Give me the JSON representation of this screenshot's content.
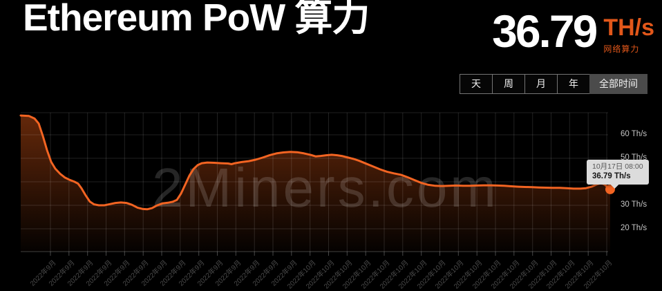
{
  "header": {
    "title": "Ethereum PoW 算力",
    "value": "36.79",
    "unit": "TH/s",
    "caption": "网络算力"
  },
  "colors": {
    "accent": "#e2571a",
    "line": "#f26422",
    "fill": "#ee5f18",
    "page_bg": "#000000",
    "tooltip_bg": "#dcdcdc",
    "selected_button_bg": "#4b4b4b"
  },
  "range_buttons": [
    {
      "label": "天",
      "selected": false
    },
    {
      "label": "周",
      "selected": false
    },
    {
      "label": "月",
      "selected": false
    },
    {
      "label": "年",
      "selected": false
    },
    {
      "label": "全部时间",
      "selected": true
    }
  ],
  "tooltip": {
    "date": "10月17日 08:00",
    "value": "36.79 Th/s"
  },
  "watermark": "2Miners.com",
  "chart_data": {
    "type": "area",
    "title": "Ethereum PoW 算力",
    "ylabel": "Th/s",
    "ylim": [
      10,
      70
    ],
    "grid": true,
    "legend": "none",
    "y_ticks": [
      {
        "value": 60,
        "label": "60 Th/s"
      },
      {
        "value": 50,
        "label": "50 Th/s"
      },
      {
        "value": 40,
        "label": "40 Th/s"
      },
      {
        "value": 30,
        "label": "30 Th/s"
      },
      {
        "value": 20,
        "label": "20 Th/s"
      }
    ],
    "y_grid_values": [
      70,
      60,
      50,
      40,
      30,
      20
    ],
    "x_labels": [
      "2022年9月",
      "2022年9月",
      "2022年9月",
      "2022年9月",
      "2022年9月",
      "2022年9月",
      "2022年9月",
      "2022年9月",
      "2022年9月",
      "2022年9月",
      "2022年9月",
      "2022年9月",
      "2022年9月",
      "2022年9月",
      "2022年10月",
      "2022年10月",
      "2022年10月",
      "2022年10月",
      "2022年10月",
      "2022年10月",
      "2022年10月",
      "2022年10月",
      "2022年10月",
      "2022年10月",
      "2022年10月",
      "2022年10月",
      "2022年10月",
      "2022年10月",
      "2022年10月",
      "2022年10月",
      "2022年10月"
    ],
    "series": [
      {
        "name": "网络算力 (Th/s)",
        "points": [
          [
            30,
            68.2
          ],
          [
            42,
            68.0
          ],
          [
            50,
            66.9
          ],
          [
            56,
            64.8
          ],
          [
            62,
            59.5
          ],
          [
            68,
            53.5
          ],
          [
            74,
            48.5
          ],
          [
            80,
            45.6
          ],
          [
            87,
            43.4
          ],
          [
            94,
            41.8
          ],
          [
            101,
            40.8
          ],
          [
            108,
            40.0
          ],
          [
            113,
            39.2
          ],
          [
            118,
            37.2
          ],
          [
            124,
            34.2
          ],
          [
            130,
            31.6
          ],
          [
            136,
            30.4
          ],
          [
            143,
            30.0
          ],
          [
            151,
            30.0
          ],
          [
            159,
            30.5
          ],
          [
            167,
            31.0
          ],
          [
            175,
            31.2
          ],
          [
            183,
            31.0
          ],
          [
            191,
            30.2
          ],
          [
            199,
            29.0
          ],
          [
            207,
            28.4
          ],
          [
            213,
            28.3
          ],
          [
            220,
            28.8
          ],
          [
            227,
            29.9
          ],
          [
            235,
            30.8
          ],
          [
            243,
            31.1
          ],
          [
            250,
            31.5
          ],
          [
            256,
            32.3
          ],
          [
            262,
            35.0
          ],
          [
            268,
            38.8
          ],
          [
            274,
            42.6
          ],
          [
            280,
            45.4
          ],
          [
            286,
            47.1
          ],
          [
            292,
            47.9
          ],
          [
            300,
            48.2
          ],
          [
            310,
            48.1
          ],
          [
            320,
            47.9
          ],
          [
            330,
            47.8
          ],
          [
            335,
            47.5
          ],
          [
            340,
            47.9
          ],
          [
            350,
            48.4
          ],
          [
            360,
            48.8
          ],
          [
            370,
            49.4
          ],
          [
            380,
            50.3
          ],
          [
            390,
            51.3
          ],
          [
            400,
            52.1
          ],
          [
            410,
            52.5
          ],
          [
            420,
            52.7
          ],
          [
            430,
            52.6
          ],
          [
            440,
            52.1
          ],
          [
            450,
            51.4
          ],
          [
            457,
            50.8
          ],
          [
            464,
            51.0
          ],
          [
            472,
            51.3
          ],
          [
            480,
            51.5
          ],
          [
            488,
            51.3
          ],
          [
            496,
            50.9
          ],
          [
            504,
            50.3
          ],
          [
            512,
            49.7
          ],
          [
            520,
            48.9
          ],
          [
            530,
            47.7
          ],
          [
            540,
            46.5
          ],
          [
            550,
            45.3
          ],
          [
            560,
            44.3
          ],
          [
            570,
            43.6
          ],
          [
            580,
            43.0
          ],
          [
            590,
            41.9
          ],
          [
            600,
            40.7
          ],
          [
            610,
            39.5
          ],
          [
            620,
            38.7
          ],
          [
            630,
            38.3
          ],
          [
            640,
            38.2
          ],
          [
            650,
            38.3
          ],
          [
            660,
            38.4
          ],
          [
            670,
            38.3
          ],
          [
            680,
            38.3
          ],
          [
            690,
            38.4
          ],
          [
            700,
            38.5
          ],
          [
            710,
            38.5
          ],
          [
            720,
            38.4
          ],
          [
            730,
            38.3
          ],
          [
            740,
            38.1
          ],
          [
            750,
            37.9
          ],
          [
            760,
            37.8
          ],
          [
            770,
            37.7
          ],
          [
            780,
            37.6
          ],
          [
            790,
            37.5
          ],
          [
            800,
            37.4
          ],
          [
            810,
            37.4
          ],
          [
            820,
            37.3
          ],
          [
            830,
            37.1
          ],
          [
            840,
            37.1
          ],
          [
            848,
            37.3
          ],
          [
            856,
            37.9
          ],
          [
            863,
            38.8
          ],
          [
            868,
            39.3
          ],
          [
            872,
            39.2
          ],
          [
            876,
            38.6
          ],
          [
            880,
            37.6
          ],
          [
            883,
            36.79
          ]
        ]
      }
    ],
    "end_marker": {
      "x": 883,
      "value": 36.79,
      "date": "10月17日 08:00",
      "label": "36.79 Th/s"
    }
  }
}
